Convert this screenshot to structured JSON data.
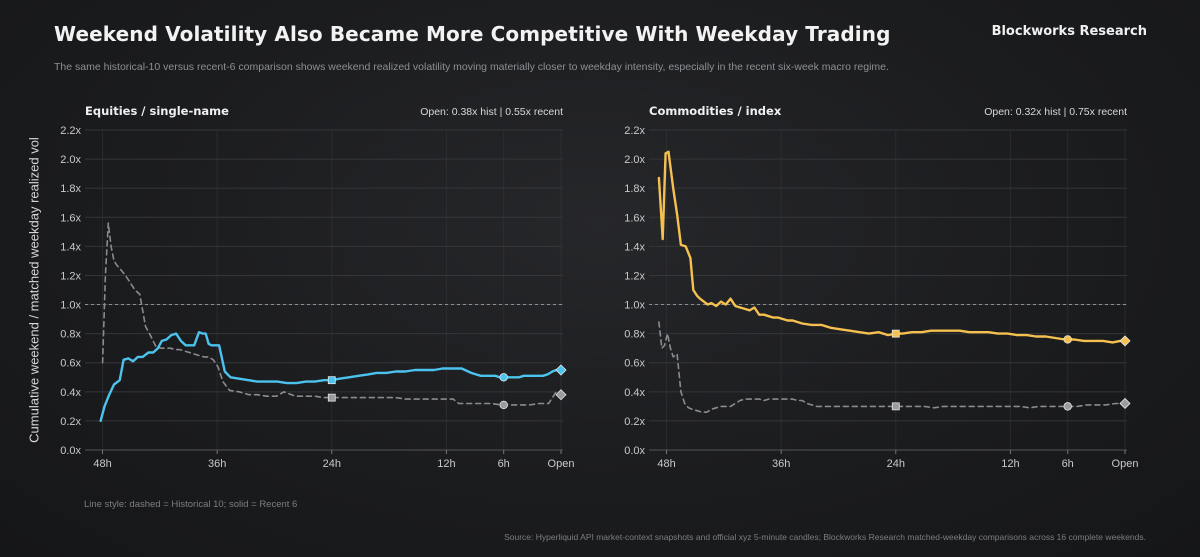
{
  "header": {
    "title": "Weekend Volatility Also Became More Competitive With Weekday Trading",
    "brand": "Blockworks Research",
    "subtitle": "The same historical-10 versus recent-6 comparison shows weekend realized volatility moving materially closer to weekday intensity, especially in the recent six-week macro regime."
  },
  "footer": {
    "legend_note": "Line style: dashed = Historical 10; solid = Recent 6",
    "source": "Source: Hyperliquid API market-context snapshots and official xyz 5-minute candles; Blockworks Research matched-weekday comparisons across 16 complete weekends."
  },
  "colors": {
    "recent_equities": "#4cc3ee",
    "recent_commodities": "#f5c04f",
    "historical": "#8a8b8f",
    "grid": "#34363a",
    "reference": "#8f9094"
  },
  "chart_data": [
    {
      "type": "line",
      "title": "Equities / single-name",
      "stat": "Open: 0.38x hist | 0.55x recent",
      "ylabel": "Cumulative weekend / matched weekday realized vol",
      "x_unit": "hours to open",
      "xlim": [
        49,
        0
      ],
      "xticks": [
        48,
        36,
        24,
        12,
        6,
        0
      ],
      "xtick_labels": [
        "48h",
        "36h",
        "24h",
        "12h",
        "6h",
        "Open"
      ],
      "ylim": [
        0,
        2.2
      ],
      "yticks": [
        0,
        0.2,
        0.4,
        0.6,
        0.8,
        1.0,
        1.2,
        1.4,
        1.6,
        1.8,
        2.0,
        2.2
      ],
      "ytick_labels": [
        "0.0x",
        "0.2x",
        "0.4x",
        "0.6x",
        "0.8x",
        "1.0x",
        "1.2x",
        "1.4x",
        "1.6x",
        "1.8x",
        "2.0x",
        "2.2x"
      ],
      "reference_line": 1.0,
      "grid": true,
      "series": [
        {
          "name": "Recent 6",
          "style": "solid",
          "color": "#4cc3ee",
          "x": [
            48.2,
            47.8,
            47.3,
            46.8,
            46.2,
            45.8,
            45.3,
            44.8,
            44.3,
            43.8,
            43.2,
            42.7,
            42.2,
            41.8,
            41.3,
            40.8,
            40.3,
            39.8,
            39.3,
            38.8,
            38.4,
            37.9,
            37.5,
            37.2,
            36.9,
            36.6,
            36.2,
            35.8,
            35.2,
            34.6,
            33.7,
            32.7,
            31.8,
            30.7,
            29.7,
            28.7,
            27.7,
            26.7,
            25.8,
            24.8,
            24.0,
            23.2,
            22.2,
            21.2,
            20.2,
            19.3,
            18.3,
            17.3,
            16.3,
            15.3,
            14.3,
            13.3,
            12.4,
            11.4,
            10.4,
            9.4,
            8.9,
            8.4,
            7.9,
            7.4,
            6.9,
            6.4,
            5.9,
            5.4,
            4.9,
            4.4,
            3.9,
            3.4,
            2.9,
            2.4,
            1.9,
            1.4,
            0.9,
            0.5,
            0.0
          ],
          "y": [
            0.2,
            0.3,
            0.38,
            0.45,
            0.48,
            0.62,
            0.63,
            0.61,
            0.64,
            0.64,
            0.67,
            0.67,
            0.7,
            0.75,
            0.76,
            0.79,
            0.8,
            0.75,
            0.72,
            0.72,
            0.72,
            0.81,
            0.8,
            0.8,
            0.73,
            0.72,
            0.72,
            0.72,
            0.54,
            0.5,
            0.49,
            0.48,
            0.47,
            0.47,
            0.47,
            0.46,
            0.46,
            0.47,
            0.47,
            0.48,
            0.48,
            0.49,
            0.5,
            0.51,
            0.52,
            0.53,
            0.53,
            0.54,
            0.54,
            0.55,
            0.55,
            0.55,
            0.56,
            0.56,
            0.56,
            0.53,
            0.52,
            0.51,
            0.51,
            0.51,
            0.51,
            0.5,
            0.5,
            0.5,
            0.5,
            0.5,
            0.51,
            0.51,
            0.51,
            0.51,
            0.51,
            0.52,
            0.54,
            0.55,
            0.55
          ],
          "markers": [
            {
              "x": 24,
              "y": 0.48,
              "shape": "square"
            },
            {
              "x": 6,
              "y": 0.5,
              "shape": "circle"
            },
            {
              "x": 0,
              "y": 0.55,
              "shape": "diamond"
            }
          ]
        },
        {
          "name": "Historical 10",
          "style": "dashed",
          "color": "#8a8b8f",
          "x": [
            48.0,
            47.7,
            47.4,
            47.1,
            46.8,
            46.5,
            46.1,
            45.6,
            45.1,
            44.6,
            44.1,
            43.5,
            43.0,
            42.4,
            41.9,
            41.4,
            40.9,
            40.4,
            39.9,
            39.4,
            38.9,
            38.4,
            37.9,
            37.4,
            36.9,
            36.4,
            35.9,
            35.4,
            34.7,
            33.7,
            32.7,
            31.8,
            30.8,
            29.8,
            29.0,
            28.6,
            27.8,
            26.8,
            25.8,
            24.8,
            24.0,
            23.2,
            22.2,
            21.2,
            20.2,
            19.2,
            18.3,
            17.3,
            16.3,
            15.3,
            14.3,
            13.3,
            12.3,
            11.3,
            10.7,
            10.3,
            9.8,
            9.3,
            8.3,
            7.3,
            6.3,
            5.8,
            5.3,
            4.3,
            3.3,
            2.3,
            1.3,
            0.8,
            0.5,
            0.2,
            0.0
          ],
          "y": [
            0.6,
            1.2,
            1.56,
            1.4,
            1.3,
            1.27,
            1.24,
            1.2,
            1.15,
            1.1,
            1.07,
            0.85,
            0.79,
            0.71,
            0.7,
            0.7,
            0.7,
            0.69,
            0.69,
            0.68,
            0.67,
            0.66,
            0.65,
            0.64,
            0.64,
            0.62,
            0.57,
            0.47,
            0.41,
            0.4,
            0.38,
            0.38,
            0.37,
            0.37,
            0.4,
            0.39,
            0.37,
            0.37,
            0.37,
            0.36,
            0.36,
            0.36,
            0.36,
            0.36,
            0.36,
            0.36,
            0.36,
            0.36,
            0.35,
            0.35,
            0.35,
            0.35,
            0.35,
            0.35,
            0.32,
            0.32,
            0.32,
            0.32,
            0.32,
            0.32,
            0.31,
            0.31,
            0.31,
            0.31,
            0.31,
            0.32,
            0.32,
            0.37,
            0.4,
            0.38,
            0.38
          ],
          "markers": [
            {
              "x": 24,
              "y": 0.36,
              "shape": "square"
            },
            {
              "x": 6,
              "y": 0.31,
              "shape": "circle"
            },
            {
              "x": 0,
              "y": 0.38,
              "shape": "diamond"
            }
          ]
        }
      ]
    },
    {
      "type": "line",
      "title": "Commodities / index",
      "stat": "Open: 0.32x hist | 0.75x recent",
      "ylabel": "Cumulative weekend / matched weekday realized vol",
      "x_unit": "hours to open",
      "xlim": [
        49,
        0
      ],
      "xticks": [
        48,
        36,
        24,
        12,
        6,
        0
      ],
      "xtick_labels": [
        "48h",
        "36h",
        "24h",
        "12h",
        "6h",
        "Open"
      ],
      "ylim": [
        0,
        2.2
      ],
      "yticks": [
        0,
        0.2,
        0.4,
        0.6,
        0.8,
        1.0,
        1.2,
        1.4,
        1.6,
        1.8,
        2.0,
        2.2
      ],
      "ytick_labels": [
        "0.0x",
        "0.2x",
        "0.4x",
        "0.6x",
        "0.8x",
        "1.0x",
        "1.2x",
        "1.4x",
        "1.6x",
        "1.8x",
        "2.0x",
        "2.2x"
      ],
      "reference_line": 1.0,
      "grid": true,
      "series": [
        {
          "name": "Recent 6",
          "style": "solid",
          "color": "#f5c04f",
          "x": [
            48.8,
            48.4,
            48.1,
            47.8,
            47.3,
            46.9,
            46.5,
            46.0,
            45.5,
            45.2,
            44.8,
            44.5,
            44.1,
            43.7,
            43.3,
            42.8,
            42.3,
            41.8,
            41.3,
            40.8,
            40.3,
            39.8,
            39.3,
            38.8,
            38.3,
            37.8,
            37.3,
            36.8,
            36.3,
            35.8,
            35.3,
            34.8,
            34.3,
            33.8,
            32.8,
            31.8,
            30.8,
            29.8,
            28.8,
            27.8,
            26.8,
            25.8,
            24.8,
            24.0,
            23.3,
            22.3,
            21.3,
            20.3,
            19.3,
            18.3,
            17.3,
            16.3,
            15.3,
            14.3,
            13.3,
            12.3,
            11.3,
            10.3,
            9.3,
            8.3,
            7.3,
            6.3,
            5.8,
            5.3,
            4.3,
            3.3,
            2.3,
            1.3,
            0.5,
            0.0
          ],
          "y": [
            1.87,
            1.45,
            2.04,
            2.05,
            1.8,
            1.62,
            1.41,
            1.4,
            1.32,
            1.1,
            1.06,
            1.04,
            1.02,
            1.0,
            1.01,
            0.99,
            1.02,
            1.0,
            1.04,
            0.99,
            0.98,
            0.97,
            0.96,
            0.98,
            0.93,
            0.93,
            0.92,
            0.91,
            0.91,
            0.9,
            0.89,
            0.89,
            0.88,
            0.87,
            0.86,
            0.86,
            0.84,
            0.83,
            0.82,
            0.81,
            0.8,
            0.81,
            0.79,
            0.8,
            0.8,
            0.81,
            0.81,
            0.82,
            0.82,
            0.82,
            0.82,
            0.81,
            0.81,
            0.81,
            0.8,
            0.8,
            0.79,
            0.79,
            0.78,
            0.78,
            0.77,
            0.76,
            0.76,
            0.76,
            0.75,
            0.75,
            0.75,
            0.74,
            0.75,
            0.75
          ],
          "markers": [
            {
              "x": 24,
              "y": 0.8,
              "shape": "square"
            },
            {
              "x": 6,
              "y": 0.76,
              "shape": "circle"
            },
            {
              "x": 0,
              "y": 0.75,
              "shape": "diamond"
            }
          ]
        },
        {
          "name": "Historical 10",
          "style": "dashed",
          "color": "#8a8b8f",
          "x": [
            48.8,
            48.5,
            48.2,
            47.9,
            47.6,
            47.3,
            46.9,
            46.5,
            46.1,
            45.7,
            45.3,
            44.8,
            44.3,
            43.8,
            43.3,
            42.8,
            42.3,
            41.8,
            41.3,
            40.8,
            40.3,
            39.8,
            39.3,
            38.8,
            38.3,
            37.8,
            37.3,
            36.8,
            36.3,
            35.8,
            35.3,
            34.8,
            34.3,
            33.8,
            33.3,
            32.8,
            32.3,
            31.8,
            31.3,
            30.8,
            30.3,
            29.8,
            29.3,
            28.8,
            28.0,
            27.0,
            26.0,
            25.0,
            24.0,
            23.0,
            22.0,
            21.0,
            20.0,
            19.0,
            18.0,
            17.0,
            16.0,
            15.0,
            14.0,
            13.0,
            12.0,
            11.0,
            10.0,
            9.0,
            8.0,
            7.0,
            6.0,
            5.0,
            4.0,
            3.0,
            2.0,
            1.0,
            0.5,
            0.0
          ],
          "y": [
            0.88,
            0.7,
            0.72,
            0.8,
            0.7,
            0.64,
            0.66,
            0.4,
            0.32,
            0.29,
            0.28,
            0.27,
            0.26,
            0.26,
            0.28,
            0.29,
            0.3,
            0.3,
            0.3,
            0.32,
            0.34,
            0.35,
            0.35,
            0.35,
            0.35,
            0.34,
            0.35,
            0.35,
            0.35,
            0.35,
            0.35,
            0.35,
            0.34,
            0.34,
            0.32,
            0.31,
            0.3,
            0.3,
            0.3,
            0.3,
            0.3,
            0.3,
            0.3,
            0.3,
            0.3,
            0.3,
            0.3,
            0.3,
            0.3,
            0.3,
            0.3,
            0.3,
            0.29,
            0.3,
            0.3,
            0.3,
            0.3,
            0.3,
            0.3,
            0.3,
            0.3,
            0.3,
            0.29,
            0.3,
            0.3,
            0.3,
            0.3,
            0.3,
            0.31,
            0.31,
            0.31,
            0.32,
            0.32,
            0.32
          ],
          "markers": [
            {
              "x": 24,
              "y": 0.3,
              "shape": "square"
            },
            {
              "x": 6,
              "y": 0.3,
              "shape": "circle"
            },
            {
              "x": 0,
              "y": 0.32,
              "shape": "diamond"
            }
          ]
        }
      ]
    }
  ]
}
